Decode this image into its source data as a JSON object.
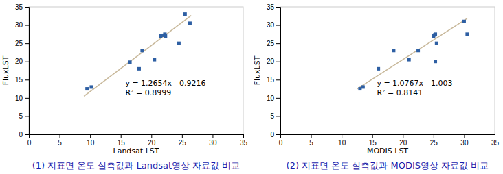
{
  "chart_data": [
    {
      "type": "scatter",
      "title": "(1)  지표면 온도 실측값과 Landsat영상 자료값 비교",
      "x_label": "Landsat LST",
      "y_label": "FluxLST",
      "xlim": [
        0,
        35
      ],
      "ylim": [
        0,
        35
      ],
      "xticks": [
        0,
        5,
        10,
        15,
        20,
        25,
        30,
        35
      ],
      "yticks": [
        0,
        5,
        10,
        15,
        20,
        25,
        30,
        35
      ],
      "series": [
        {
          "type": "scatter",
          "marker": "square",
          "color": "#2e5fa3",
          "x": [
            9.5,
            10.2,
            16.5,
            18.0,
            18.5,
            20.5,
            21.5,
            22.0,
            22.2,
            22.3,
            24.5,
            25.5,
            26.3
          ],
          "values": [
            12.5,
            13.0,
            19.8,
            18.0,
            23.0,
            20.5,
            27.0,
            27.2,
            27.5,
            27.0,
            25.0,
            33.0,
            30.5
          ]
        },
        {
          "type": "line",
          "color": "#c8b89a",
          "x": [
            9.0,
            26.5
          ],
          "values": [
            10.467,
            32.6115
          ]
        }
      ],
      "annotations": [
        "y = 1.2654x - 0.9216",
        "R² = 0.8999"
      ]
    },
    {
      "type": "scatter",
      "title": "(2)  지표면 온도 실측값과 MODIS영상 자료값 비교",
      "x_label": "MODIS LST",
      "y_label": "FluxLST",
      "xlim": [
        0,
        35
      ],
      "ylim": [
        0,
        35
      ],
      "xticks": [
        0,
        5,
        10,
        15,
        20,
        25,
        30,
        35
      ],
      "yticks": [
        0,
        5,
        10,
        15,
        20,
        25,
        30,
        35
      ],
      "series": [
        {
          "type": "scatter",
          "marker": "square",
          "color": "#2e5fa3",
          "x": [
            13.0,
            13.5,
            16.0,
            18.5,
            21.0,
            22.5,
            25.0,
            25.2,
            25.3,
            25.5,
            25.3,
            30.0,
            30.5
          ],
          "values": [
            12.5,
            13.0,
            18.0,
            23.0,
            20.5,
            23.0,
            27.0,
            27.3,
            27.5,
            25.0,
            20.0,
            31.0,
            27.5
          ]
        },
        {
          "type": "line",
          "color": "#c8b89a",
          "x": [
            12.5,
            30.5
          ],
          "values": [
            12.45575,
            31.83635
          ]
        }
      ],
      "annotations": [
        "y = 1.0767x - 1.003",
        "R² = 0.8141"
      ]
    }
  ]
}
